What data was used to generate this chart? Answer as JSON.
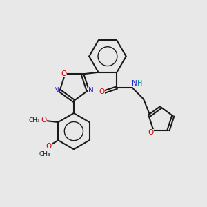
{
  "background_color": "#e8e8e8",
  "bond_color": "#1a1a1a",
  "N_color": "#2020cc",
  "O_color": "#cc0000",
  "NH_color": "#008888",
  "figsize": [
    3.0,
    3.0
  ],
  "dpi": 100,
  "xlim": [
    0,
    10
  ],
  "ylim": [
    0,
    10
  ]
}
